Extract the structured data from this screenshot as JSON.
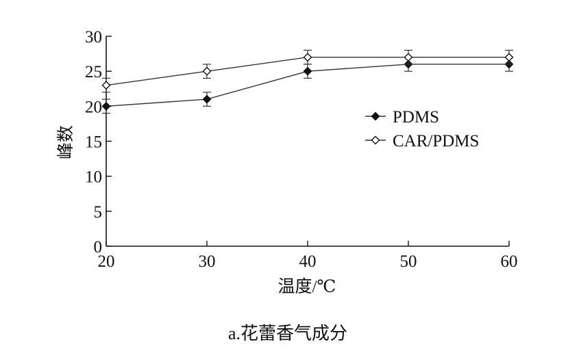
{
  "chart_data": {
    "type": "line",
    "title": "",
    "xlabel": "温度/℃",
    "ylabel": "峰数",
    "caption": "a.花蕾香气成分",
    "x": [
      20,
      30,
      40,
      50,
      60
    ],
    "xlim": [
      20,
      60
    ],
    "ylim": [
      0,
      30
    ],
    "xticks": [
      "20",
      "30",
      "40",
      "50",
      "60"
    ],
    "yticks": [
      "0",
      "5",
      "10",
      "15",
      "20",
      "25",
      "30"
    ],
    "grid": false,
    "legend_position": "center-right",
    "series": [
      {
        "name": "PDMS",
        "marker": "filled-diamond",
        "values": [
          20,
          21,
          25,
          26,
          26
        ],
        "error": [
          1,
          1,
          1,
          1,
          1
        ]
      },
      {
        "name": "CAR/PDMS",
        "marker": "open-diamond",
        "values": [
          23,
          25,
          27,
          27,
          27
        ],
        "error": [
          1,
          1,
          1,
          1,
          1
        ]
      }
    ],
    "colors": {
      "line": "#333333",
      "marker": "#111111",
      "axis": "#111111"
    }
  }
}
